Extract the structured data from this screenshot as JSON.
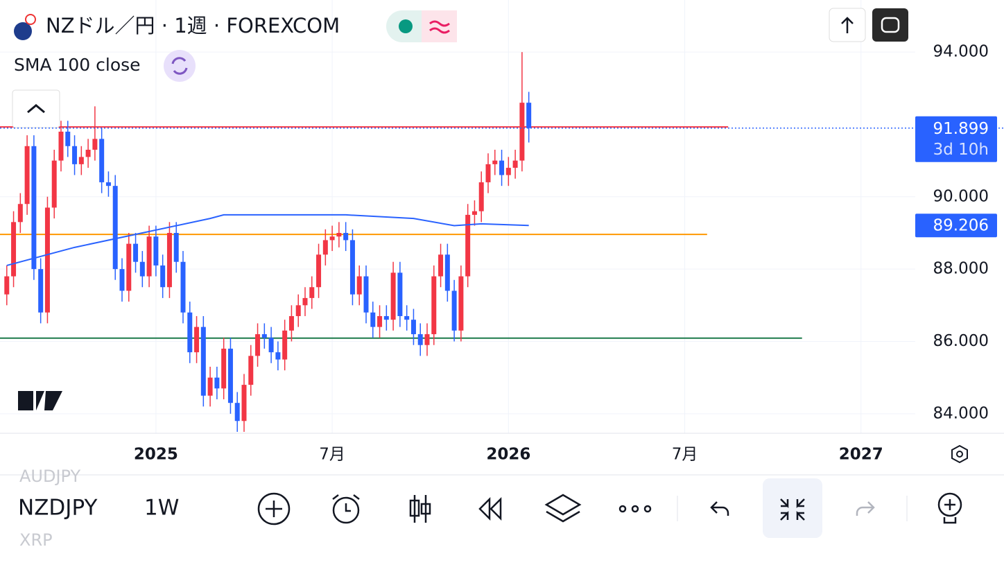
{
  "header": {
    "symbol_title": "NZドル／円 · 1週 · FOREXCOM",
    "indicator": "SMA 100 close"
  },
  "toolbar": {
    "symbol": "NZDJPY",
    "interval": "1W",
    "ghost_above": "AUDJPY",
    "ghost_below": "XRP"
  },
  "chart_data": {
    "type": "candlestick",
    "x": [
      0,
      1,
      2,
      3,
      4,
      5,
      6,
      7,
      8,
      9,
      10,
      11,
      12,
      13,
      14,
      15,
      16,
      17,
      18,
      19,
      20,
      21,
      22,
      23,
      24,
      25,
      26,
      27,
      28,
      29,
      30,
      31,
      32,
      33,
      34,
      35,
      36,
      37,
      38,
      39,
      40,
      41,
      42,
      43,
      44,
      45,
      46,
      47,
      48,
      49,
      50,
      51,
      52,
      53,
      54,
      55,
      56,
      57,
      58,
      59,
      60,
      61,
      62,
      63,
      64,
      65,
      66,
      67,
      68,
      69,
      70,
      71,
      72,
      73,
      74,
      75,
      76,
      77
    ],
    "open": [
      87.3,
      87.8,
      89.3,
      89.8,
      91.4,
      88.0,
      86.8,
      89.7,
      91.0,
      91.8,
      91.4,
      90.9,
      91.1,
      91.3,
      91.6,
      90.4,
      90.3,
      88.0,
      87.4,
      88.7,
      88.2,
      87.8,
      88.9,
      88.1,
      87.5,
      89.0,
      88.2,
      86.8,
      85.7,
      86.4,
      84.5,
      85.0,
      84.7,
      85.8,
      84.3,
      83.8,
      84.8,
      85.6,
      86.2,
      86.1,
      85.7,
      85.5,
      86.3,
      86.7,
      87.0,
      87.2,
      87.5,
      88.4,
      88.8,
      88.9,
      89.0,
      88.8,
      87.3,
      87.8,
      86.8,
      86.4,
      86.7,
      86.6,
      87.9,
      86.7,
      86.6,
      86.2,
      85.9,
      86.2,
      87.8,
      88.4,
      87.4,
      86.3,
      87.8,
      89.5,
      89.6,
      90.4,
      90.9,
      91.0,
      90.6,
      90.8,
      91.0,
      92.6
    ],
    "high": [
      88.1,
      89.6,
      90.1,
      91.7,
      91.7,
      88.3,
      90.0,
      91.3,
      92.1,
      92.1,
      91.7,
      91.4,
      91.6,
      92.5,
      91.9,
      90.7,
      90.6,
      88.3,
      89.0,
      89.0,
      88.5,
      89.2,
      89.2,
      88.4,
      89.3,
      89.3,
      88.5,
      87.1,
      86.7,
      86.7,
      85.3,
      85.3,
      86.1,
      86.1,
      84.6,
      85.1,
      85.9,
      86.5,
      86.5,
      86.4,
      86.0,
      86.6,
      87.0,
      87.3,
      87.5,
      87.8,
      88.7,
      89.1,
      89.2,
      89.3,
      89.3,
      89.1,
      88.1,
      88.1,
      87.1,
      87.0,
      87.0,
      88.2,
      88.2,
      87.0,
      86.9,
      86.5,
      86.5,
      88.1,
      88.7,
      88.7,
      87.7,
      88.1,
      89.8,
      89.9,
      90.7,
      91.2,
      91.3,
      91.3,
      91.1,
      91.3,
      94.0,
      92.9
    ],
    "low": [
      87.0,
      87.5,
      89.0,
      89.5,
      87.7,
      86.5,
      86.5,
      89.4,
      90.7,
      91.1,
      90.6,
      90.6,
      90.8,
      91.0,
      90.1,
      90.0,
      87.7,
      87.1,
      87.1,
      87.9,
      87.5,
      87.5,
      87.8,
      87.2,
      87.2,
      87.9,
      86.5,
      85.4,
      85.4,
      84.2,
      84.2,
      84.4,
      84.4,
      84.0,
      83.5,
      83.5,
      84.5,
      85.3,
      85.8,
      85.4,
      85.2,
      85.2,
      86.0,
      86.4,
      86.7,
      86.9,
      87.2,
      88.1,
      88.5,
      88.6,
      88.5,
      87.0,
      87.0,
      86.5,
      86.1,
      86.1,
      86.3,
      86.3,
      86.4,
      86.3,
      85.9,
      85.6,
      85.6,
      85.9,
      87.5,
      87.1,
      86.0,
      86.0,
      87.5,
      89.2,
      89.3,
      90.1,
      90.6,
      90.3,
      90.3,
      90.5,
      90.7,
      91.5
    ],
    "close": [
      87.8,
      89.3,
      89.8,
      91.4,
      88.0,
      86.8,
      89.7,
      91.0,
      91.8,
      91.4,
      90.9,
      91.1,
      91.3,
      91.6,
      90.4,
      90.3,
      88.0,
      87.4,
      88.7,
      88.2,
      87.8,
      88.9,
      88.1,
      87.5,
      89.0,
      88.2,
      86.8,
      85.7,
      86.4,
      84.5,
      85.0,
      84.7,
      85.8,
      84.3,
      83.8,
      84.8,
      85.6,
      86.2,
      86.1,
      85.7,
      85.5,
      86.3,
      86.7,
      87.0,
      87.2,
      87.5,
      88.4,
      88.8,
      88.9,
      89.0,
      88.8,
      87.3,
      87.8,
      86.8,
      86.4,
      86.7,
      86.6,
      87.9,
      86.7,
      86.6,
      86.2,
      85.9,
      86.2,
      87.8,
      88.4,
      87.4,
      86.3,
      87.8,
      89.5,
      89.6,
      90.4,
      90.9,
      91.0,
      90.6,
      90.8,
      91.0,
      92.6,
      91.899
    ],
    "up_color": "#f23645",
    "down_color": "#2962ff",
    "sma": {
      "name": "SMA 100 close",
      "color": "#2962ff",
      "x": [
        0,
        10,
        20,
        30,
        32,
        40,
        50,
        60,
        66,
        70,
        77
      ],
      "values": [
        88.1,
        88.6,
        89.0,
        89.4,
        89.5,
        89.5,
        89.5,
        89.4,
        89.2,
        89.25,
        89.206
      ]
    },
    "hlines": [
      {
        "value": 91.93,
        "color": "#f23645",
        "xend": 106.4
      },
      {
        "value": 88.96,
        "color": "#ff9800",
        "xend": 103.3
      },
      {
        "value": 86.09,
        "color": "#1b7a4a",
        "xend": 117.3
      }
    ],
    "countdown": "3d 10h",
    "xlim": [
      -1,
      134
    ],
    "xticks": [
      {
        "value": 22,
        "label": "2025"
      },
      {
        "value": 48,
        "label": "7月"
      },
      {
        "value": 74,
        "label": "2026"
      },
      {
        "value": 100,
        "label": "7月"
      },
      {
        "value": 126,
        "label": "2027"
      }
    ],
    "ylim": [
      83.46,
      95.44
    ],
    "yticks": [
      {
        "value": 84,
        "label": "84.000"
      },
      {
        "value": 86,
        "label": "86.000"
      },
      {
        "value": 88,
        "label": "88.000"
      },
      {
        "value": 90,
        "label": "90.000"
      },
      {
        "value": 94,
        "label": "94.000"
      }
    ],
    "grid": true
  }
}
